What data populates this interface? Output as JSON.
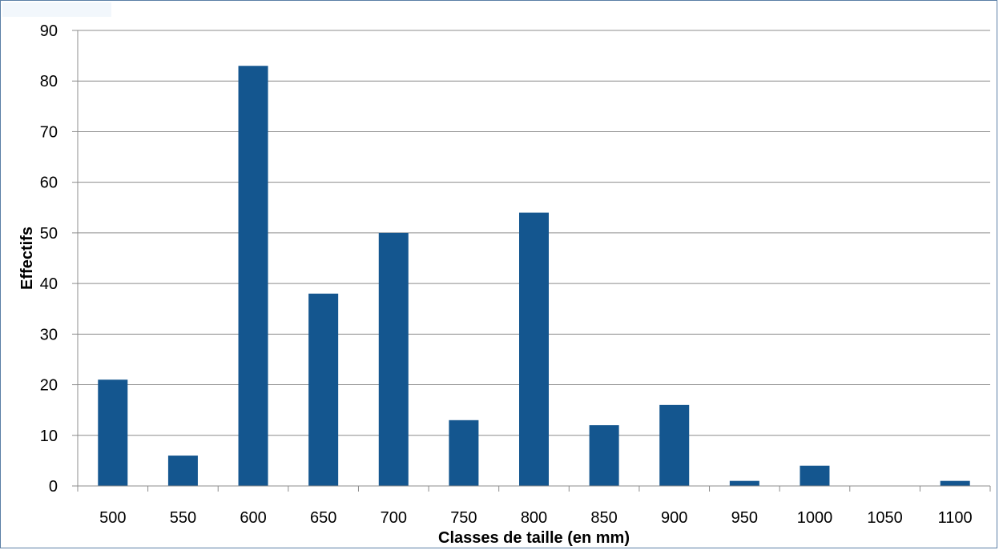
{
  "chart_data": {
    "type": "bar",
    "title": "",
    "xlabel": "Classes de taille (en mm)",
    "ylabel": "Effectifs",
    "categories": [
      "500",
      "550",
      "600",
      "650",
      "700",
      "750",
      "800",
      "850",
      "900",
      "950",
      "1000",
      "1050",
      "1100"
    ],
    "values": [
      21,
      6,
      83,
      38,
      50,
      13,
      54,
      12,
      16,
      1,
      4,
      0,
      1
    ],
    "ylim": [
      0,
      90
    ],
    "yticks": [
      0,
      10,
      20,
      30,
      40,
      50,
      60,
      70,
      80,
      90
    ],
    "grid": true,
    "legend": "none",
    "bar_color": "#14568f",
    "grid_color": "#8c8c8c"
  }
}
